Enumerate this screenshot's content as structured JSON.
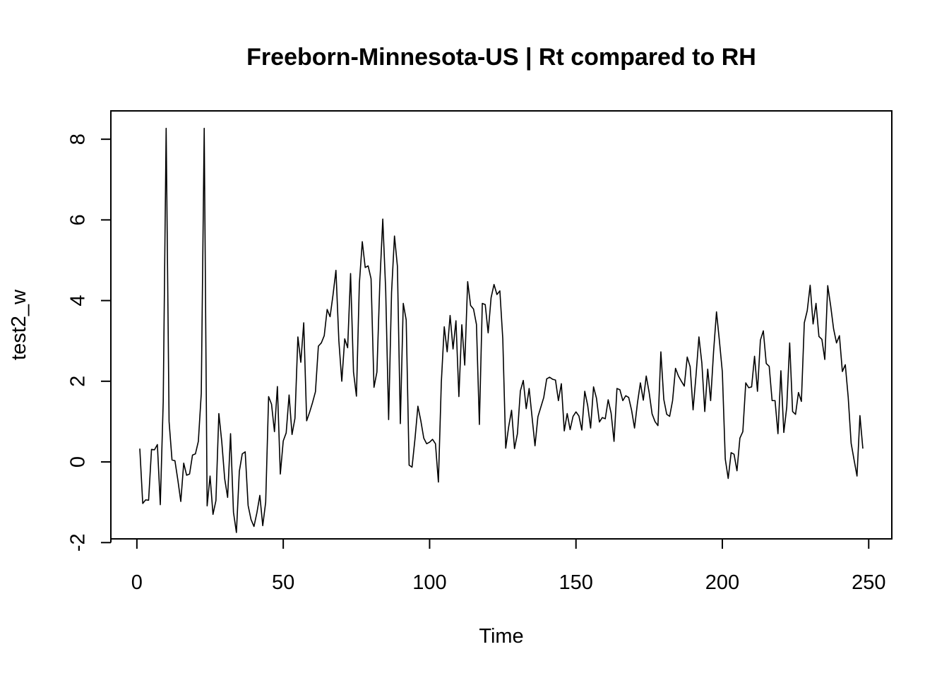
{
  "chart_data": {
    "type": "line",
    "title": "Freeborn-Minnesota-US | Rt compared to RH",
    "xlabel": "Time",
    "ylabel": "test2_w",
    "xlim": [
      1,
      248
    ],
    "ylim": [
      -1.75,
      8.3
    ],
    "x_ticks": [
      0,
      50,
      100,
      150,
      200,
      250
    ],
    "y_ticks": [
      -2,
      0,
      2,
      4,
      6,
      8
    ],
    "line_color": "#000000",
    "series": [
      {
        "x_start": 1,
        "values": [
          0.33,
          -1.03,
          -0.94,
          -0.95,
          0.31,
          0.3,
          0.43,
          -1.06,
          1.5,
          8.27,
          1.0,
          0.05,
          0.03,
          -0.45,
          -0.98,
          -0.03,
          -0.33,
          -0.3,
          0.17,
          0.2,
          0.51,
          1.7,
          8.27,
          -1.09,
          -0.35,
          -1.3,
          -0.96,
          1.2,
          0.5,
          -0.42,
          -0.88,
          0.7,
          -1.25,
          -1.75,
          -0.23,
          0.2,
          0.25,
          -1.08,
          -1.43,
          -1.6,
          -1.26,
          -0.83,
          -1.58,
          -1.0,
          1.62,
          1.43,
          0.75,
          1.87,
          -0.3,
          0.52,
          0.72,
          1.66,
          0.68,
          1.08,
          3.1,
          2.47,
          3.45,
          1.02,
          1.23,
          1.47,
          1.74,
          2.87,
          2.95,
          3.13,
          3.78,
          3.6,
          4.14,
          4.75,
          3.0,
          2.0,
          3.05,
          2.83,
          4.67,
          2.23,
          1.63,
          4.42,
          5.46,
          4.82,
          4.86,
          4.54,
          1.85,
          2.23,
          4.45,
          6.02,
          4.25,
          1.05,
          4.2,
          5.6,
          4.85,
          0.95,
          3.93,
          3.52,
          -0.08,
          -0.13,
          0.57,
          1.38,
          1.02,
          0.59,
          0.45,
          0.49,
          0.56,
          0.45,
          -0.5,
          1.97,
          3.35,
          2.73,
          3.63,
          2.8,
          3.5,
          1.62,
          3.4,
          2.4,
          4.47,
          3.88,
          3.79,
          3.41,
          0.93,
          3.93,
          3.9,
          3.2,
          4.07,
          4.4,
          4.15,
          4.24,
          3.05,
          0.34,
          0.87,
          1.28,
          0.33,
          0.7,
          1.76,
          2.02,
          1.32,
          1.82,
          1.11,
          0.4,
          1.12,
          1.36,
          1.6,
          2.06,
          2.1,
          2.05,
          2.03,
          1.52,
          1.94,
          0.77,
          1.2,
          0.8,
          1.13,
          1.24,
          1.14,
          0.79,
          1.75,
          1.4,
          0.84,
          1.86,
          1.58,
          0.99,
          1.1,
          1.07,
          1.54,
          1.21,
          0.51,
          1.82,
          1.79,
          1.52,
          1.64,
          1.6,
          1.28,
          0.84,
          1.46,
          1.96,
          1.53,
          2.13,
          1.72,
          1.19,
          1.0,
          0.9,
          2.73,
          1.55,
          1.18,
          1.13,
          1.52,
          2.32,
          2.13,
          2.0,
          1.88,
          2.6,
          2.36,
          1.29,
          2.14,
          3.1,
          2.45,
          1.25,
          2.3,
          1.52,
          2.73,
          3.72,
          3.0,
          2.23,
          0.07,
          -0.41,
          0.23,
          0.19,
          -0.22,
          0.59,
          0.75,
          1.96,
          1.84,
          1.86,
          2.62,
          1.75,
          3.02,
          3.25,
          2.44,
          2.37,
          1.52,
          1.52,
          0.7,
          2.26,
          0.73,
          1.36,
          2.95,
          1.25,
          1.18,
          1.72,
          1.5,
          3.45,
          3.75,
          4.38,
          3.42,
          3.93,
          3.11,
          3.04,
          2.54,
          4.37,
          3.87,
          3.3,
          2.95,
          3.13,
          2.24,
          2.41,
          1.6,
          0.46,
          0.05,
          -0.35,
          1.15,
          0.33
        ]
      }
    ]
  }
}
